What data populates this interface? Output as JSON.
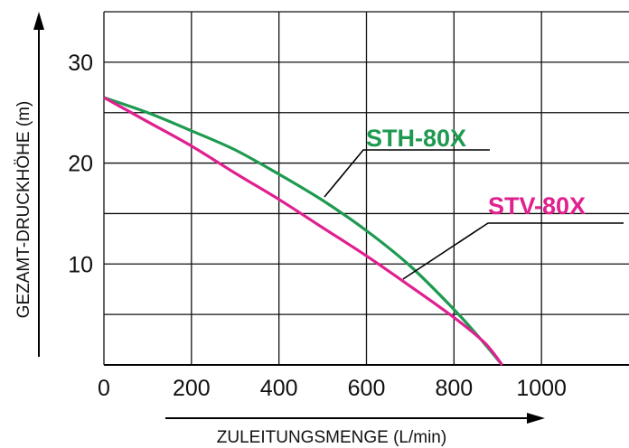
{
  "chart_data": {
    "type": "line",
    "xlabel": "ZULEITUNGSMENGE (L/min)",
    "ylabel": "GEZAMT-DRUCKHÖHE (m)",
    "xlim": [
      0,
      1200
    ],
    "ylim": [
      0,
      35
    ],
    "x_ticks": [
      "0",
      "200",
      "400",
      "600",
      "800",
      "1000"
    ],
    "y_ticks": [
      "10",
      "20",
      "30"
    ],
    "grid": true,
    "series": [
      {
        "name": "STH-80X",
        "color": "#1e9a50",
        "x": [
          0,
          100,
          200,
          300,
          400,
          500,
          600,
          700,
          800,
          860,
          910
        ],
        "y": [
          26.5,
          25.0,
          23.2,
          21.3,
          18.9,
          16.3,
          13.3,
          9.8,
          5.5,
          2.6,
          0
        ]
      },
      {
        "name": "STV-80X",
        "color": "#e0208f",
        "x": [
          0,
          100,
          200,
          300,
          400,
          500,
          600,
          700,
          800,
          870,
          910
        ],
        "y": [
          26.5,
          24.1,
          21.7,
          19.0,
          16.4,
          13.6,
          10.8,
          7.8,
          4.7,
          2.2,
          0
        ]
      }
    ]
  }
}
